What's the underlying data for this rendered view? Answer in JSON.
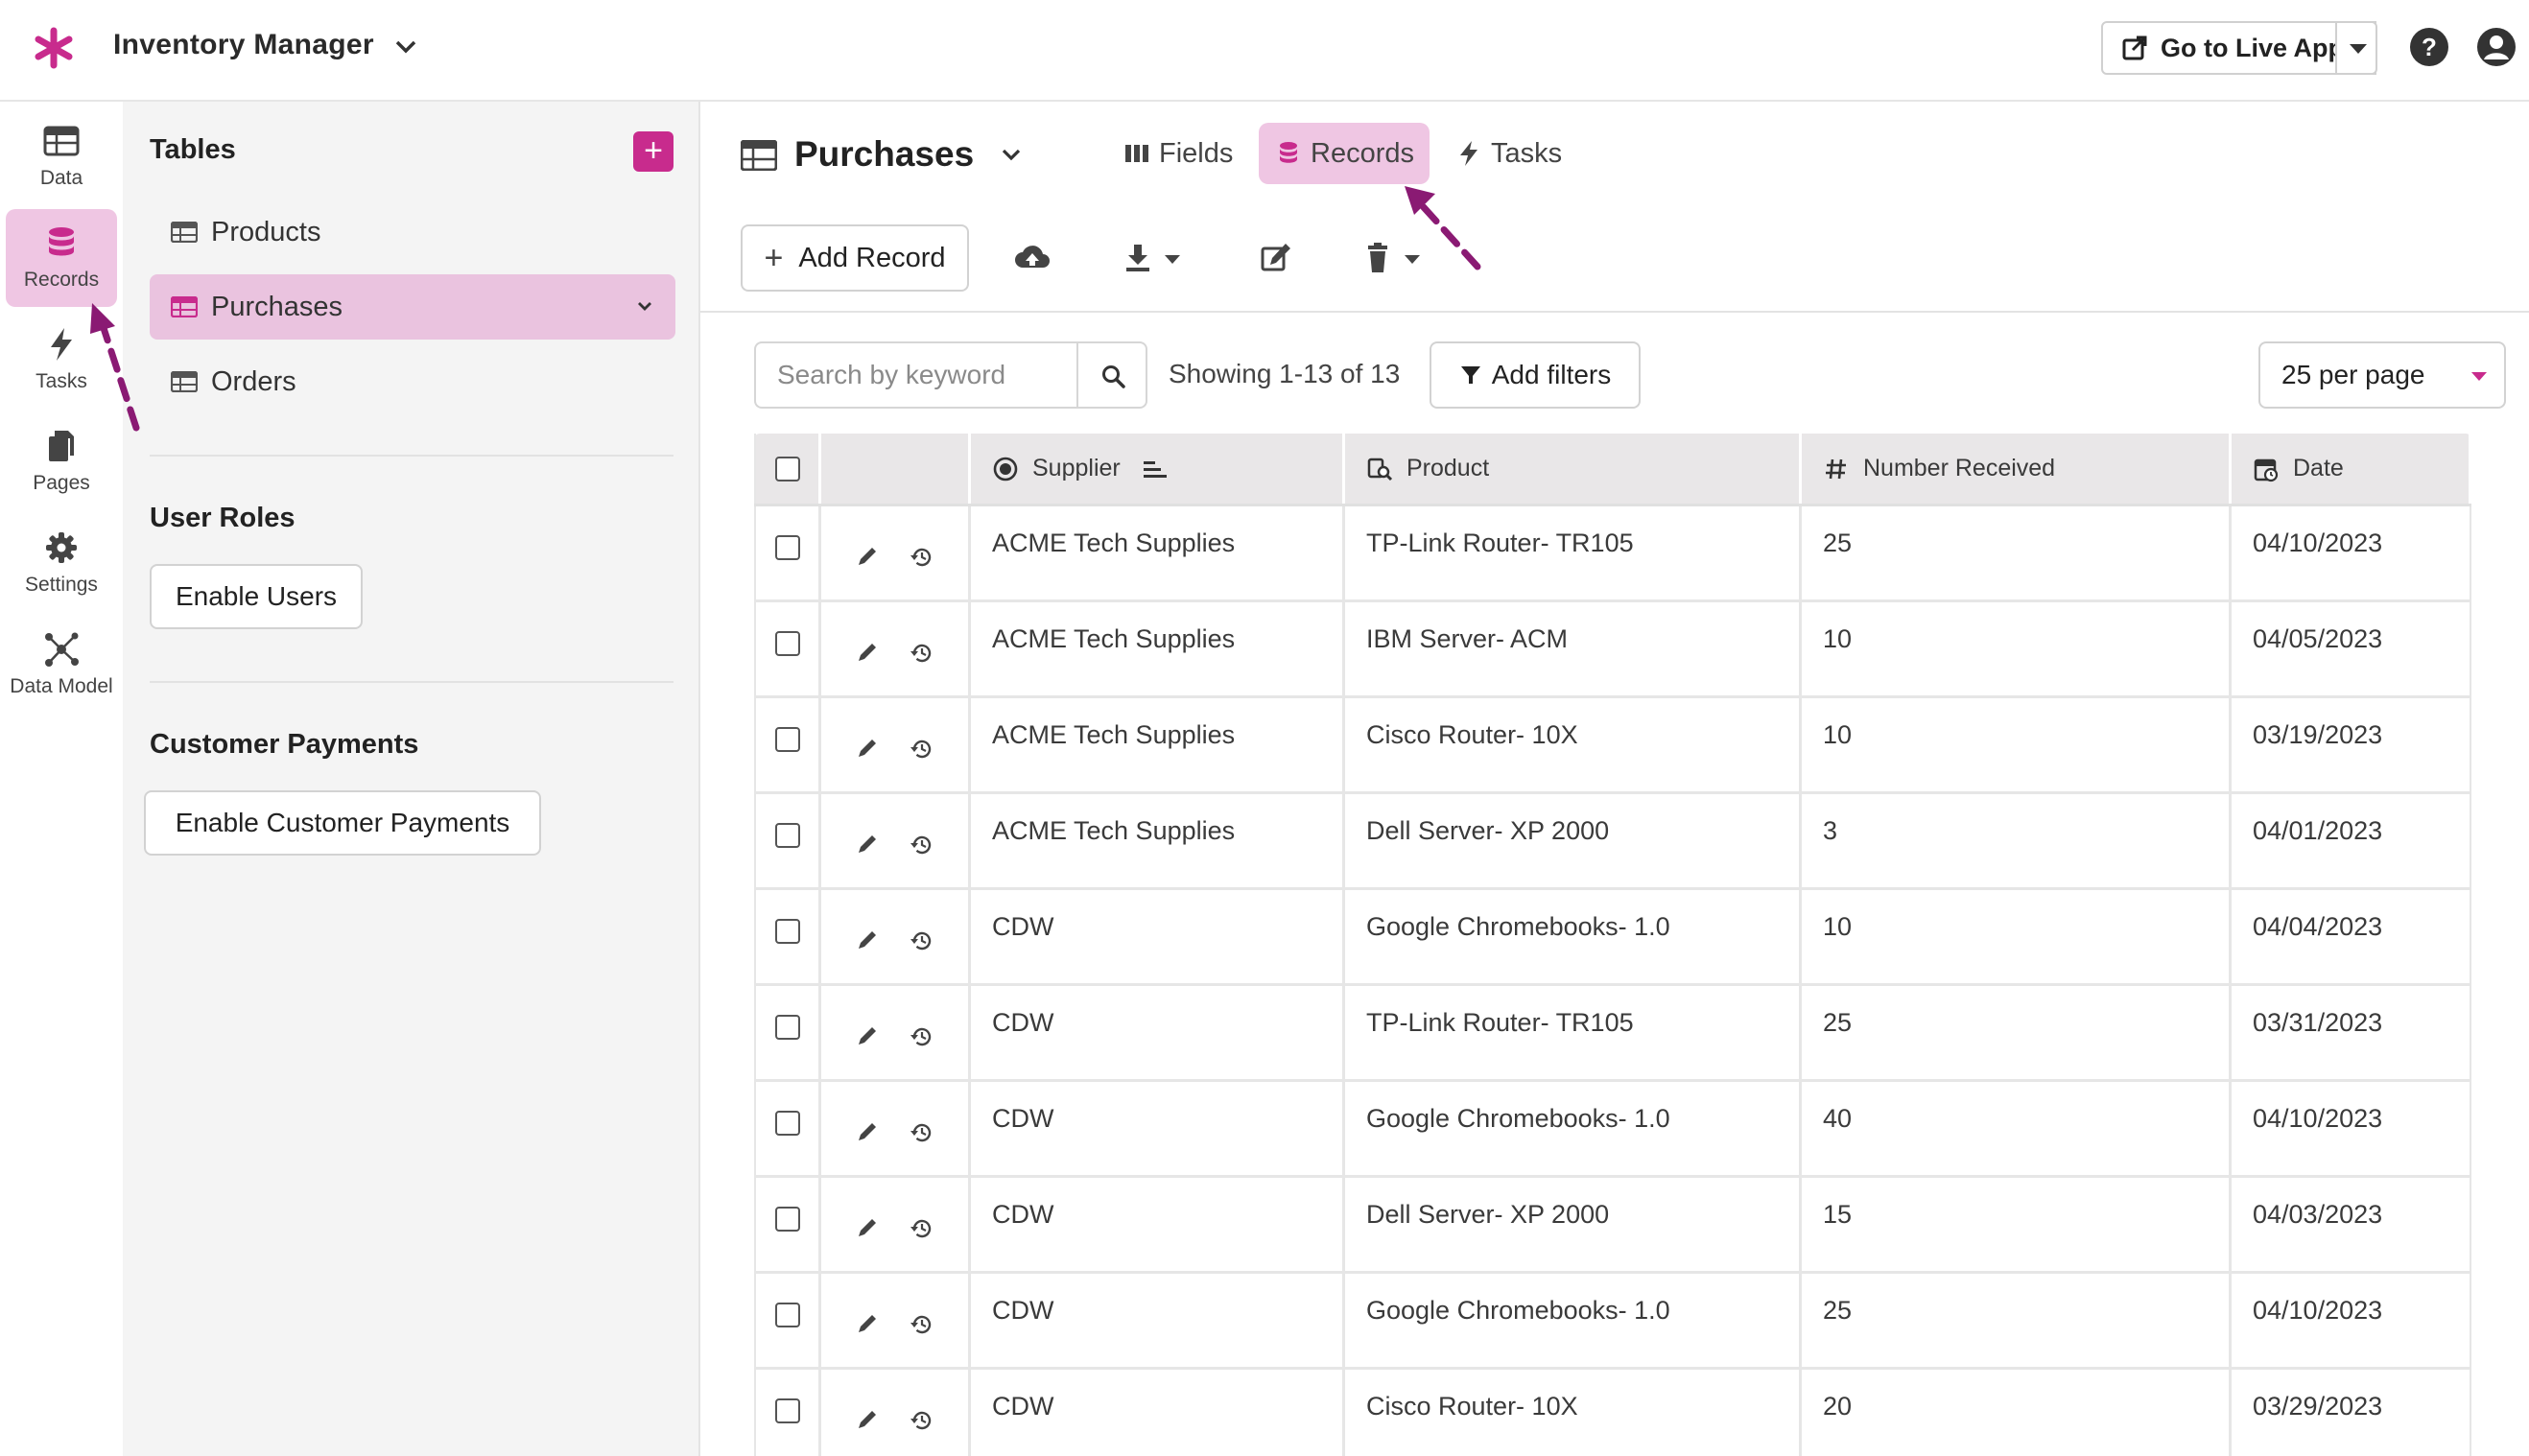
{
  "app": {
    "title": "Inventory Manager",
    "accent": "#c82b8d",
    "live_button": "Go to Live App"
  },
  "rail": {
    "items": [
      {
        "label": "Data",
        "icon": "table-icon",
        "active": false
      },
      {
        "label": "Records",
        "icon": "database-icon",
        "active": true
      },
      {
        "label": "Tasks",
        "icon": "bolt-icon",
        "active": false
      },
      {
        "label": "Pages",
        "icon": "pages-icon",
        "active": false
      },
      {
        "label": "Settings",
        "icon": "gear-icon",
        "active": false
      },
      {
        "label": "Data Model",
        "icon": "data-model-icon",
        "active": false
      }
    ]
  },
  "sidebar": {
    "tables_heading": "Tables",
    "tables": [
      {
        "label": "Products",
        "active": false
      },
      {
        "label": "Purchases",
        "active": true
      },
      {
        "label": "Orders",
        "active": false
      }
    ],
    "user_roles_heading": "User Roles",
    "enable_users": "Enable Users",
    "payments_heading": "Customer Payments",
    "enable_payments": "Enable Customer Payments"
  },
  "main": {
    "title": "Purchases",
    "tabs": [
      {
        "label": "Fields",
        "icon": "columns-icon",
        "active": false
      },
      {
        "label": "Records",
        "icon": "database-icon",
        "active": true
      },
      {
        "label": "Tasks",
        "icon": "bolt-icon",
        "active": false
      }
    ],
    "add_record": "Add Record",
    "search_placeholder": "Search by keyword",
    "showing": "Showing 1-13 of 13",
    "add_filters": "Add filters",
    "per_page": "25 per page"
  },
  "table": {
    "columns": [
      "Supplier",
      "Product",
      "Number Received",
      "Date"
    ],
    "rows": [
      [
        "ACME Tech Supplies",
        "TP-Link Router- TR105",
        "25",
        "04/10/2023"
      ],
      [
        "ACME Tech Supplies",
        "IBM Server- ACM",
        "10",
        "04/05/2023"
      ],
      [
        "ACME Tech Supplies",
        "Cisco Router- 10X",
        "10",
        "03/19/2023"
      ],
      [
        "ACME Tech Supplies",
        "Dell Server- XP 2000",
        "3",
        "04/01/2023"
      ],
      [
        "CDW",
        "Google Chromebooks- 1.0",
        "10",
        "04/04/2023"
      ],
      [
        "CDW",
        "TP-Link Router- TR105",
        "25",
        "03/31/2023"
      ],
      [
        "CDW",
        "Google Chromebooks- 1.0",
        "40",
        "04/10/2023"
      ],
      [
        "CDW",
        "Dell Server- XP 2000",
        "15",
        "04/03/2023"
      ],
      [
        "CDW",
        "Google Chromebooks- 1.0",
        "25",
        "04/10/2023"
      ],
      [
        "CDW",
        "Cisco Router- 10X",
        "20",
        "03/29/2023"
      ]
    ]
  }
}
